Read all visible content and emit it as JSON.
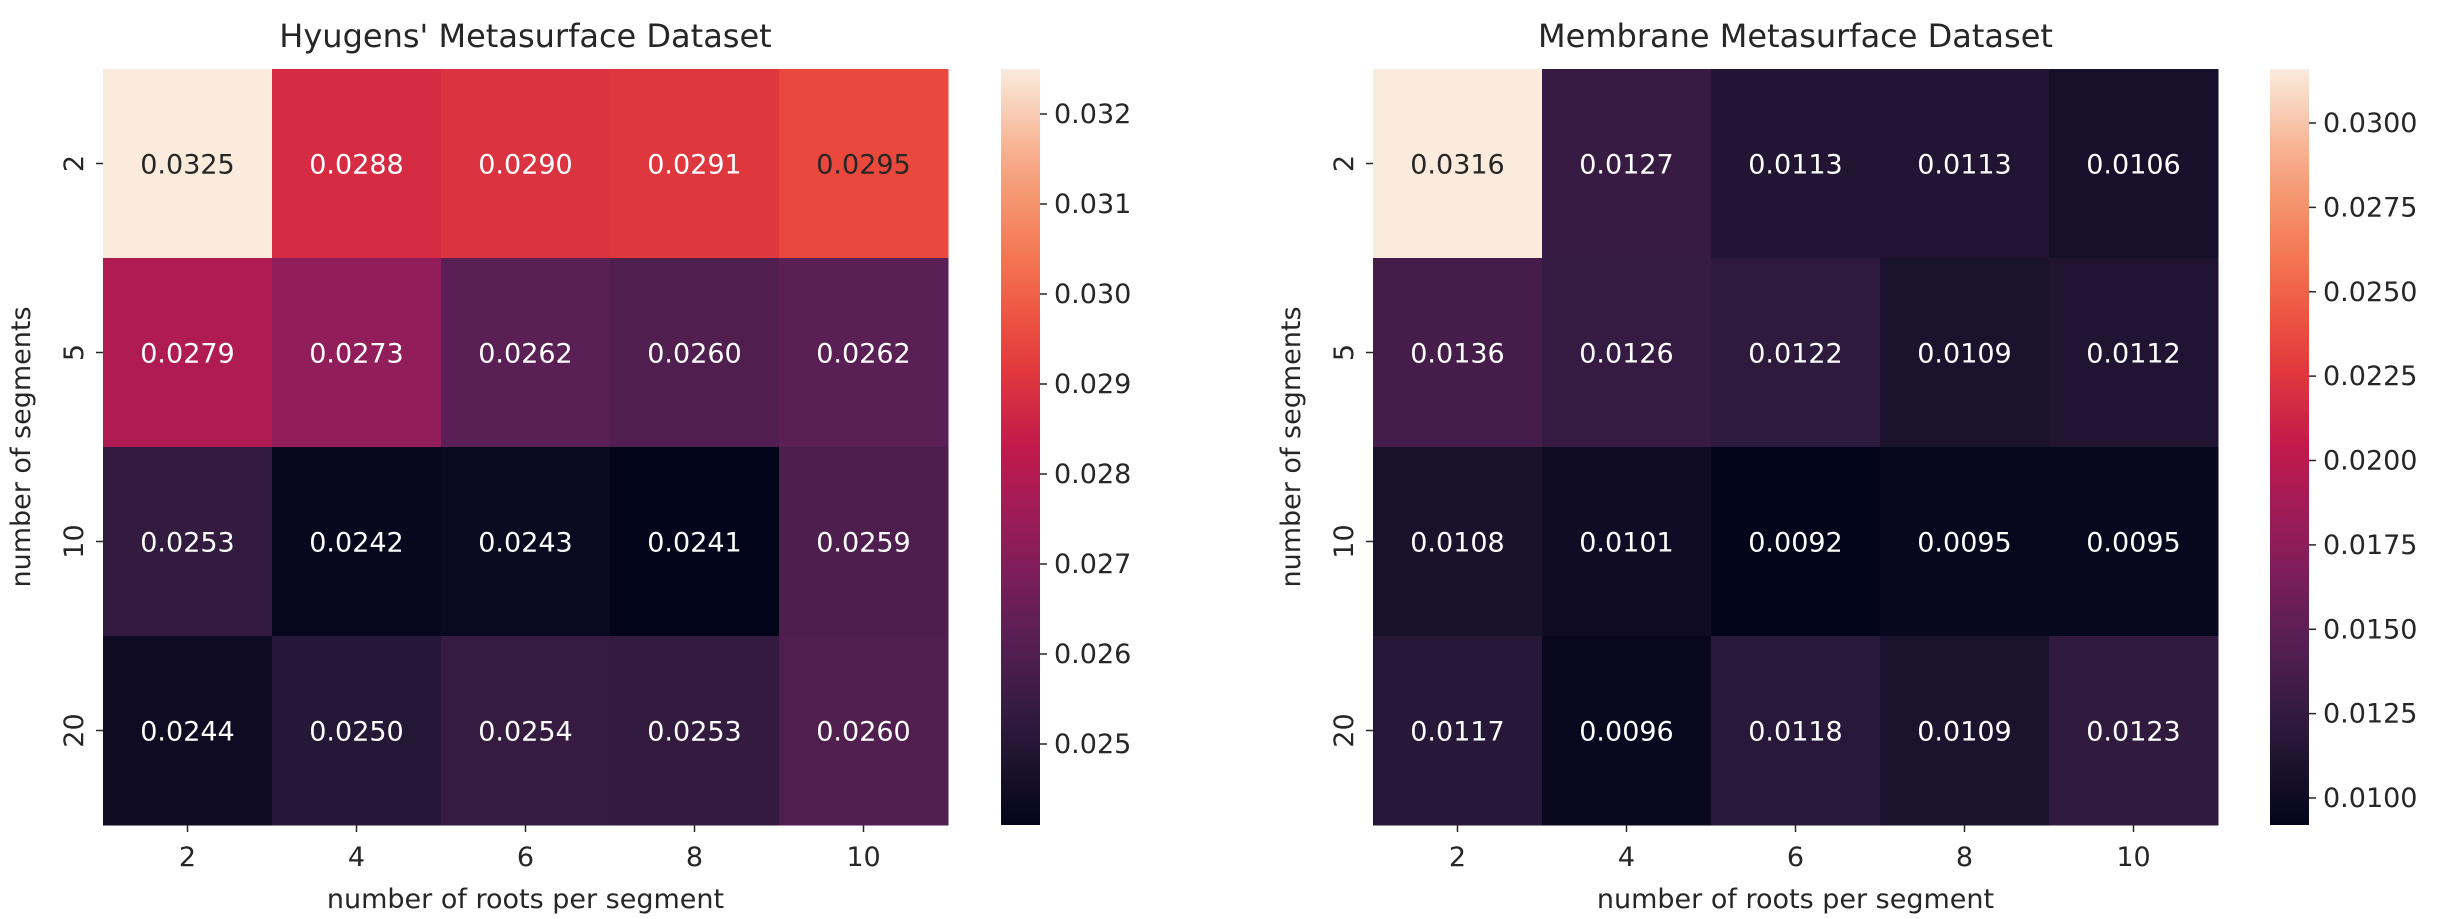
{
  "chart_data": [
    {
      "type": "heatmap",
      "title": "Hyugens' Metasurface Dataset",
      "xlabel": "number of roots per segment",
      "ylabel": "number of segments",
      "x_categories": [
        "2",
        "4",
        "6",
        "8",
        "10"
      ],
      "y_categories": [
        "2",
        "5",
        "10",
        "20"
      ],
      "values": [
        [
          0.0325,
          0.0288,
          0.029,
          0.0291,
          0.0295
        ],
        [
          0.0279,
          0.0273,
          0.0262,
          0.026,
          0.0262
        ],
        [
          0.0253,
          0.0242,
          0.0243,
          0.0241,
          0.0259
        ],
        [
          0.0244,
          0.025,
          0.0254,
          0.0253,
          0.026
        ]
      ],
      "value_labels": [
        [
          "0.0325",
          "0.0288",
          "0.0290",
          "0.0291",
          "0.0295"
        ],
        [
          "0.0279",
          "0.0273",
          "0.0262",
          "0.0260",
          "0.0262"
        ],
        [
          "0.0253",
          "0.0242",
          "0.0243",
          "0.0241",
          "0.0259"
        ],
        [
          "0.0244",
          "0.0250",
          "0.0254",
          "0.0253",
          "0.0260"
        ]
      ],
      "colorbar": {
        "range": [
          0.0241,
          0.0325
        ],
        "ticks": [
          0.025,
          0.026,
          0.027,
          0.028,
          0.029,
          0.03,
          0.031,
          0.032
        ],
        "tick_labels": [
          "0.025",
          "0.026",
          "0.027",
          "0.028",
          "0.029",
          "0.030",
          "0.031",
          "0.032"
        ]
      },
      "colormap": "rocket",
      "grid": false,
      "legend": "colorbar-right"
    },
    {
      "type": "heatmap",
      "title": "Membrane Metasurface Dataset",
      "xlabel": "number of roots per segment",
      "ylabel": "number of segments",
      "x_categories": [
        "2",
        "4",
        "6",
        "8",
        "10"
      ],
      "y_categories": [
        "2",
        "5",
        "10",
        "20"
      ],
      "values": [
        [
          0.0316,
          0.0127,
          0.0113,
          0.0113,
          0.0106
        ],
        [
          0.0136,
          0.0126,
          0.0122,
          0.0109,
          0.0112
        ],
        [
          0.0108,
          0.0101,
          0.0092,
          0.0095,
          0.0095
        ],
        [
          0.0117,
          0.0096,
          0.0118,
          0.0109,
          0.0123
        ]
      ],
      "value_labels": [
        [
          "0.0316",
          "0.0127",
          "0.0113",
          "0.0113",
          "0.0106"
        ],
        [
          "0.0136",
          "0.0126",
          "0.0122",
          "0.0109",
          "0.0112"
        ],
        [
          "0.0108",
          "0.0101",
          "0.0092",
          "0.0095",
          "0.0095"
        ],
        [
          "0.0117",
          "0.0096",
          "0.0118",
          "0.0109",
          "0.0123"
        ]
      ],
      "colorbar": {
        "range": [
          0.0092,
          0.0316
        ],
        "ticks": [
          0.01,
          0.0125,
          0.015,
          0.0175,
          0.02,
          0.0225,
          0.025,
          0.0275,
          0.03
        ],
        "tick_labels": [
          "0.0100",
          "0.0125",
          "0.0150",
          "0.0175",
          "0.0200",
          "0.0225",
          "0.0250",
          "0.0275",
          "0.0300"
        ]
      },
      "colormap": "rocket",
      "grid": false,
      "legend": "colorbar-right"
    }
  ],
  "colors": {
    "colormap_stops": [
      "#03051a",
      "#2b1a3b",
      "#5a1f55",
      "#8e1d5b",
      "#c3194c",
      "#e8403a",
      "#f37651",
      "#f6a883",
      "#faebdd"
    ],
    "text_on_light": "#262626",
    "text_on_dark": "#ffffff",
    "axis_text": "#262626"
  }
}
